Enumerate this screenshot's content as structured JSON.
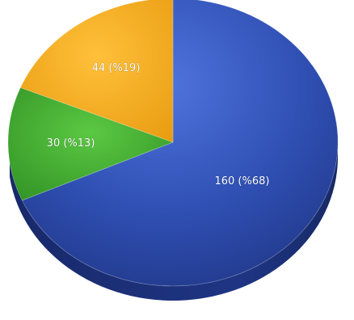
{
  "chart_data": {
    "type": "pie",
    "title": "",
    "slices": [
      {
        "value": 160,
        "percent_label": "(%68)",
        "label": "160 (%68)",
        "color": "#2f4fb3"
      },
      {
        "value": 30,
        "percent_label": "(%13)",
        "label": "30 (%13)",
        "color": "#3fae2e"
      },
      {
        "value": 44,
        "percent_label": "(%19)",
        "label": "44 (%19)",
        "color": "#f2a81a"
      }
    ],
    "style": "3d-tilted",
    "legend": "none"
  }
}
